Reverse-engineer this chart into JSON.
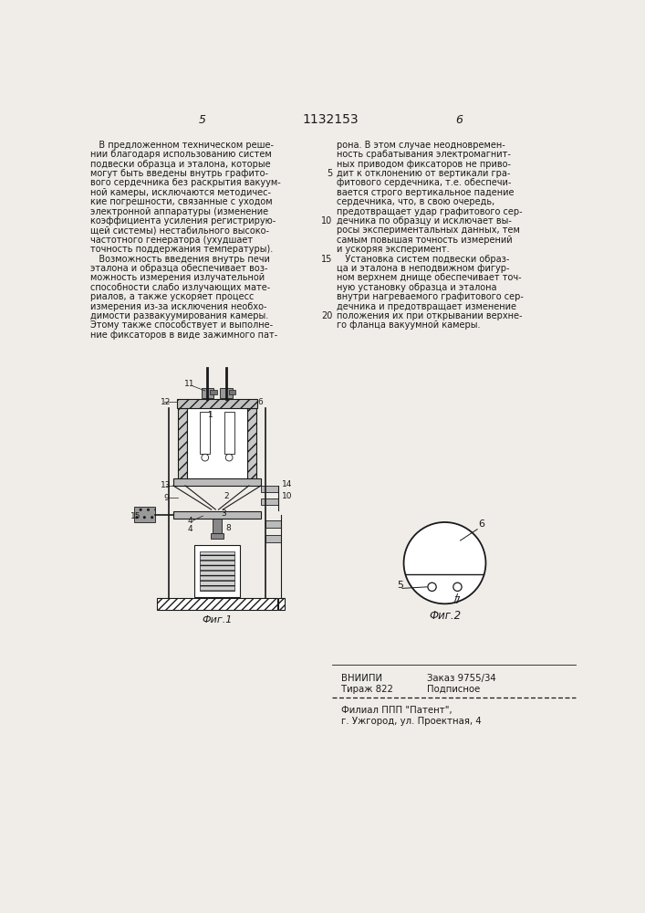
{
  "patent_number": "1132153",
  "page_left": "5",
  "page_right": "6",
  "col1_text": [
    "   В предложенном техническом реше-",
    "нии благодаря использованию систем",
    "подвески образца и эталона, которые",
    "могут быть введены внутрь графито-",
    "вого сердечника без раскрытия вакуум-",
    "ной камеры, исключаются методичес-",
    "кие погрешности, связанные с уходом",
    "электронной аппаратуры (изменение",
    "коэффициента усиления регистрирую-",
    "щей системы) нестабильного высоко-",
    "частотного генератора (ухудшает",
    "точность поддержания температуры).",
    "   Возможность введения внутрь печи",
    "эталона и образца обеспечивает воз-",
    "можность измерения излучательной",
    "способности слабо излучающих мате-",
    "риалов, а также ускоряет процесс",
    "измерения из-за исключения необхо-",
    "димости развакуумирования камеры.",
    "Этому также способствует и выполне-",
    "ние фиксаторов в виде зажимного пат-"
  ],
  "col2_text": [
    "рона. В этом случае неодновремен-",
    "ность срабатывания электромагнит-",
    "ных приводом фиксаторов не приво-",
    "дит к отклонению от вертикали гра-",
    "фитового сердечника, т.е. обеспечи-",
    "вается строго вертикальное падение",
    "сердечника, что, в свою очередь,",
    "предотвращает удар графитового сер-",
    "дечника по образцу и исключает вы-",
    "росы экспериментальных данных, тем",
    "самым повышая точность измерений",
    "и ускоряя эксперимент.",
    "   Установка систем подвески образ-",
    "ца и эталона в неподвижном фигур-",
    "ном верхнем днище обеспечивает точ-",
    "ную установку образца и эталона",
    "внутри нагреваемого графитового сер-",
    "дечника и предотвращает изменение",
    "положения их при открывании верхне-",
    "го фланца вакуумной камеры."
  ],
  "fig1_caption": "Фиг.1",
  "fig2_caption": "Фиг.2",
  "vniipi_str": "ВНИИПИ",
  "order_str": "Заказ 9755/34",
  "tirazh_str": "Тираж 822",
  "podp_str": "Подписное",
  "filial_line1": "Филиал ППП \"Патент\",",
  "filial_line2": "г. Ужгород, ул. Проектная, 4",
  "bg_color": "#f0ede8",
  "text_color": "#1a1a1a"
}
